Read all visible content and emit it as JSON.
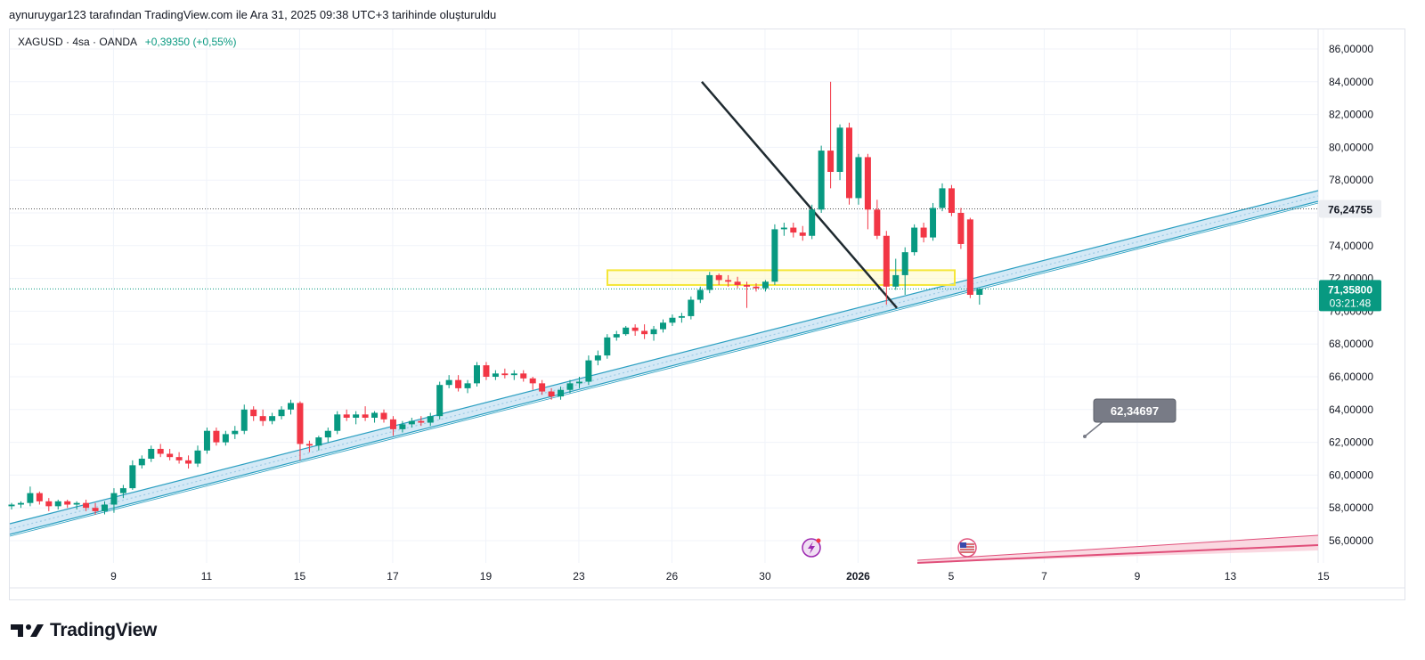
{
  "header": {
    "attribution": "aynuruygar123 tarafından TradingView.com ile Ara 31, 2025 09:38 UTC+3 tarihinde oluşturuldu"
  },
  "legend": {
    "symbol": "XAGUSD · 4sa · OANDA",
    "change": "+0,39350 (+0,55%)"
  },
  "price_labels": {
    "current": "71,35800",
    "countdown": "03:21:48",
    "level": "76,24755",
    "callout": "62,34697"
  },
  "branding": {
    "logo_text": "TradingView"
  },
  "colors": {
    "up": "#089981",
    "down": "#f23645",
    "channel": "#2b9fc1",
    "zone": "#f5e639",
    "trendline": "#1f2a30",
    "event": "#e04f7a"
  },
  "chart_data": {
    "type": "candlestick",
    "symbol": "XAGUSD",
    "timeframe": "4sa",
    "y_axis": {
      "range": [
        54.7,
        86.6
      ],
      "ticks": [
        "56,00000",
        "58,00000",
        "60,00000",
        "62,00000",
        "64,00000",
        "66,00000",
        "68,00000",
        "70,00000",
        "72,00000",
        "74,00000",
        "76,00000",
        "78,00000",
        "80,00000",
        "82,00000",
        "84,00000",
        "86,00000"
      ],
      "tick_values": [
        56,
        58,
        60,
        62,
        64,
        66,
        68,
        70,
        72,
        74,
        76,
        78,
        80,
        82,
        84,
        86
      ]
    },
    "x_axis": {
      "ticks": [
        "9",
        "11",
        "15",
        "17",
        "19",
        "23",
        "26",
        "30",
        "2026",
        "5",
        "7",
        "9",
        "13",
        "15"
      ],
      "tick_bars": [
        11,
        21,
        31,
        41,
        51,
        61,
        71,
        81,
        91,
        101,
        111,
        121,
        131,
        141
      ]
    },
    "candles": [
      [
        58.1,
        58.3,
        57.9,
        58.2
      ],
      [
        58.2,
        58.4,
        58.0,
        58.3
      ],
      [
        58.3,
        59.3,
        58.1,
        58.9
      ],
      [
        58.9,
        59.0,
        58.2,
        58.4
      ],
      [
        58.4,
        58.6,
        57.8,
        58.1
      ],
      [
        58.1,
        58.5,
        57.9,
        58.4
      ],
      [
        58.4,
        58.5,
        58.0,
        58.2
      ],
      [
        58.2,
        58.4,
        57.9,
        58.3
      ],
      [
        58.3,
        58.5,
        57.8,
        58.0
      ],
      [
        58.0,
        58.3,
        57.6,
        57.8
      ],
      [
        57.8,
        58.4,
        57.6,
        58.2
      ],
      [
        58.2,
        59.2,
        57.7,
        58.9
      ],
      [
        58.9,
        59.4,
        58.6,
        59.2
      ],
      [
        59.2,
        60.9,
        59.1,
        60.6
      ],
      [
        60.6,
        61.2,
        60.4,
        61.0
      ],
      [
        61.0,
        61.8,
        60.8,
        61.6
      ],
      [
        61.6,
        61.9,
        61.1,
        61.3
      ],
      [
        61.3,
        61.6,
        60.9,
        61.1
      ],
      [
        61.1,
        61.4,
        60.7,
        60.9
      ],
      [
        60.9,
        61.2,
        60.4,
        60.7
      ],
      [
        60.7,
        61.8,
        60.5,
        61.5
      ],
      [
        61.5,
        62.9,
        61.3,
        62.7
      ],
      [
        62.7,
        62.9,
        61.8,
        62.0
      ],
      [
        62.0,
        62.7,
        61.8,
        62.5
      ],
      [
        62.5,
        63.0,
        62.2,
        62.7
      ],
      [
        62.7,
        64.3,
        62.5,
        64.0
      ],
      [
        64.0,
        64.2,
        63.3,
        63.6
      ],
      [
        63.6,
        64.0,
        63.0,
        63.3
      ],
      [
        63.3,
        63.8,
        63.1,
        63.6
      ],
      [
        63.6,
        64.2,
        63.4,
        64.0
      ],
      [
        64.0,
        64.6,
        63.7,
        64.4
      ],
      [
        64.4,
        64.5,
        60.9,
        61.9
      ],
      [
        61.9,
        62.1,
        61.4,
        61.8
      ],
      [
        61.8,
        62.4,
        61.5,
        62.3
      ],
      [
        62.3,
        62.9,
        62.0,
        62.7
      ],
      [
        62.7,
        63.9,
        62.5,
        63.7
      ],
      [
        63.7,
        64.0,
        63.3,
        63.5
      ],
      [
        63.5,
        63.9,
        63.1,
        63.7
      ],
      [
        63.7,
        64.2,
        63.3,
        63.5
      ],
      [
        63.5,
        63.9,
        63.2,
        63.8
      ],
      [
        63.8,
        64.0,
        63.2,
        63.4
      ],
      [
        63.4,
        63.6,
        62.4,
        62.8
      ],
      [
        62.8,
        63.3,
        62.6,
        63.1
      ],
      [
        63.1,
        63.5,
        62.9,
        63.3
      ],
      [
        63.3,
        63.6,
        63.0,
        63.2
      ],
      [
        63.2,
        63.8,
        63.0,
        63.6
      ],
      [
        63.6,
        65.7,
        63.4,
        65.5
      ],
      [
        65.5,
        66.1,
        65.3,
        65.8
      ],
      [
        65.8,
        66.1,
        65.1,
        65.3
      ],
      [
        65.3,
        65.8,
        65.0,
        65.6
      ],
      [
        65.6,
        66.9,
        65.4,
        66.7
      ],
      [
        66.7,
        66.9,
        65.8,
        66.0
      ],
      [
        66.0,
        66.4,
        65.8,
        66.2
      ],
      [
        66.2,
        66.5,
        65.9,
        66.1
      ],
      [
        66.1,
        66.4,
        65.8,
        66.2
      ],
      [
        66.2,
        66.4,
        65.7,
        65.9
      ],
      [
        65.9,
        66.0,
        65.2,
        65.6
      ],
      [
        65.6,
        65.8,
        64.9,
        65.1
      ],
      [
        65.1,
        65.3,
        64.6,
        64.8
      ],
      [
        64.8,
        65.4,
        64.6,
        65.2
      ],
      [
        65.2,
        65.8,
        65.0,
        65.6
      ],
      [
        65.6,
        66.0,
        65.3,
        65.7
      ],
      [
        65.7,
        67.3,
        65.5,
        67.0
      ],
      [
        67.0,
        67.6,
        66.7,
        67.3
      ],
      [
        67.3,
        68.6,
        67.1,
        68.4
      ],
      [
        68.4,
        68.8,
        68.2,
        68.6
      ],
      [
        68.6,
        69.1,
        68.5,
        69.0
      ],
      [
        69.0,
        69.2,
        68.5,
        68.8
      ],
      [
        68.8,
        69.2,
        68.3,
        68.6
      ],
      [
        68.6,
        69.1,
        68.2,
        68.9
      ],
      [
        68.9,
        69.5,
        68.7,
        69.3
      ],
      [
        69.3,
        69.8,
        69.1,
        69.6
      ],
      [
        69.6,
        69.9,
        69.3,
        69.7
      ],
      [
        69.7,
        70.9,
        69.5,
        70.7
      ],
      [
        70.7,
        71.5,
        70.5,
        71.3
      ],
      [
        71.3,
        72.4,
        71.1,
        72.2
      ],
      [
        72.2,
        72.3,
        71.6,
        71.9
      ],
      [
        71.9,
        72.2,
        71.5,
        71.8
      ],
      [
        71.8,
        72.1,
        71.4,
        71.6
      ],
      [
        71.6,
        71.8,
        70.2,
        71.5
      ],
      [
        71.5,
        71.7,
        71.2,
        71.4
      ],
      [
        71.4,
        71.9,
        71.2,
        71.8
      ],
      [
        71.8,
        75.3,
        71.6,
        75.0
      ],
      [
        75.0,
        75.4,
        74.6,
        75.1
      ],
      [
        75.1,
        75.4,
        74.5,
        74.8
      ],
      [
        74.8,
        75.2,
        74.3,
        74.6
      ],
      [
        74.6,
        76.5,
        74.4,
        76.2
      ],
      [
        76.2,
        80.1,
        76.0,
        79.8
      ],
      [
        79.8,
        84.0,
        77.5,
        78.5
      ],
      [
        78.5,
        81.4,
        78.0,
        81.2
      ],
      [
        81.2,
        81.5,
        76.5,
        76.9
      ],
      [
        76.9,
        79.6,
        76.5,
        79.4
      ],
      [
        79.4,
        79.6,
        75.0,
        76.2
      ],
      [
        76.2,
        76.8,
        74.4,
        74.6
      ],
      [
        74.6,
        74.9,
        70.4,
        71.5
      ],
      [
        71.5,
        73.2,
        71.3,
        72.2
      ],
      [
        72.2,
        73.9,
        71.0,
        73.6
      ],
      [
        73.6,
        75.3,
        73.4,
        75.1
      ],
      [
        75.1,
        75.4,
        74.2,
        74.5
      ],
      [
        74.5,
        76.6,
        74.3,
        76.3
      ],
      [
        76.3,
        77.8,
        76.1,
        77.5
      ],
      [
        77.5,
        77.7,
        75.8,
        76.0
      ],
      [
        76.0,
        76.3,
        73.8,
        74.1
      ],
      [
        75.6,
        75.7,
        70.8,
        71.0
      ],
      [
        71.0,
        71.4,
        70.4,
        71.358
      ]
    ]
  }
}
